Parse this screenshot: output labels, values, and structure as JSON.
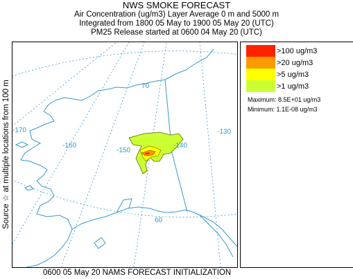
{
  "header": {
    "title": "NWS SMOKE FORECAST",
    "line2": "Air Concentration (ug/m3) Layer Average    0 m and  5000 m",
    "line3": "Integrated from 1800 05 May to 1900 05 May 20 (UTC)",
    "line4": "PM25 Release started at 0600 04 May 20 (UTC)"
  },
  "side_label": "Source ☆  at multiple locations   from  100 m",
  "footer": "0600 05 May 20 NAMS FORECAST INITIALIZATION",
  "legend": {
    "items": [
      {
        "label": ">100 ug/m3",
        "color": "#ff2200"
      },
      {
        "label": ">20 ug/m3",
        "color": "#ff9900"
      },
      {
        "label": ">5 ug/m3",
        "color": "#ffff00"
      },
      {
        "label": ">1 ug/m3",
        "color": "#ccff33"
      }
    ],
    "maximum": "Maximum: 8.5E+01 ug/m3",
    "minimum": "Minimum: 1.1E-08 ug/m3"
  },
  "map": {
    "grid_labels": {
      "lat_70": "70",
      "lat_60": "60",
      "lon_m170": "-170",
      "lon_m160": "-160",
      "lon_m150": "-150",
      "lon_m140": "-140",
      "lon_m130": "-130"
    },
    "colors": {
      "coastline": "#3399cc",
      "grid": "#3399cc"
    }
  }
}
